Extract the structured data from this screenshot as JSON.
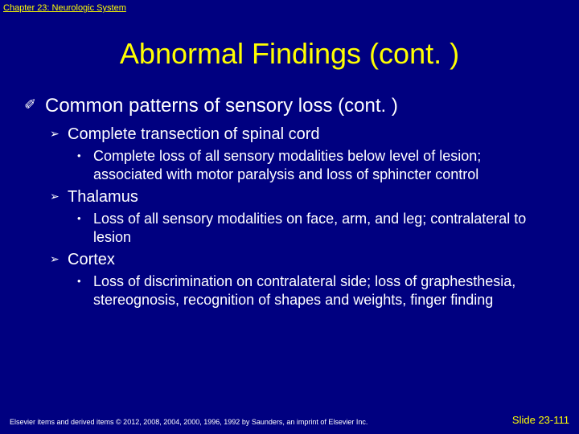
{
  "chapter_header": "Chapter 23: Neurologic System",
  "title": "Abnormal Findings (cont. )",
  "main": {
    "heading": "Common patterns of sensory loss (cont. )",
    "items": [
      {
        "label": "Complete transection of spinal cord",
        "sub": "Complete loss of all sensory modalities below level of lesion; associated with motor paralysis and loss of sphincter control"
      },
      {
        "label": "Thalamus",
        "sub": "Loss of all sensory modalities on face, arm, and leg; contralateral to lesion"
      },
      {
        "label": "Cortex",
        "sub": "Loss of discrimination on contralateral side; loss of graphesthesia, stereognosis, recognition of shapes and weights, finger finding"
      }
    ]
  },
  "footer": {
    "copyright": "Elsevier items and derived items © 2012, 2008, 2004, 2000, 1996, 1992 by Saunders, an imprint of Elsevier Inc.",
    "slide": "Slide 23-111"
  },
  "bullets": {
    "level1": "✐",
    "level2": "➢",
    "level3": "•"
  },
  "colors": {
    "background": "#000080",
    "accent": "#ffff00",
    "text": "#ffffff"
  }
}
